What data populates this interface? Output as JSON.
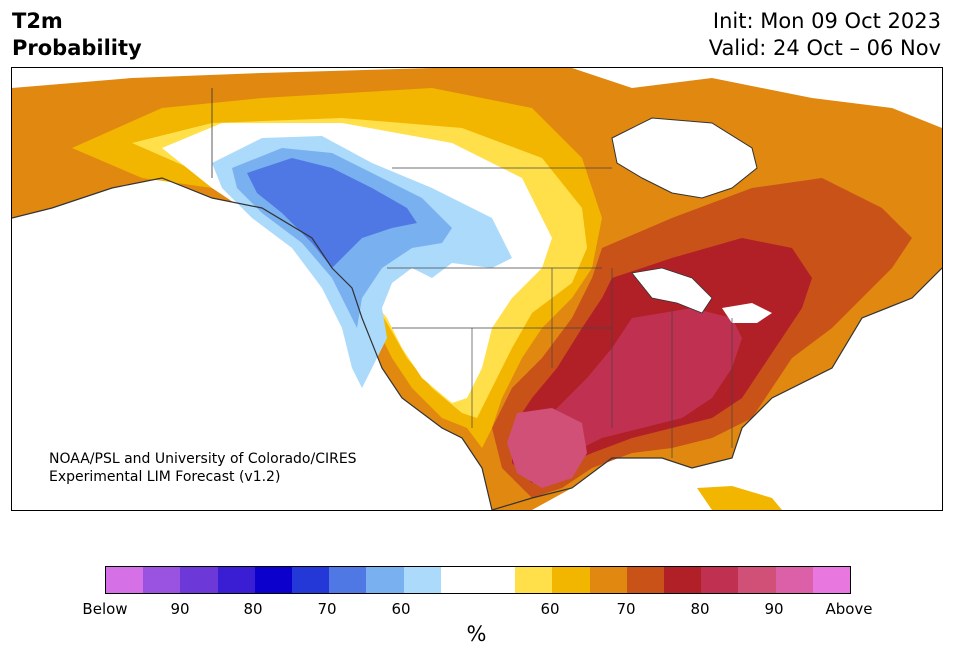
{
  "title": {
    "variable": "T2m",
    "metric": "Probability",
    "init": "Init: Mon 09 Oct 2023",
    "valid": "Valid: 24 Oct – 06 Nov"
  },
  "credit": {
    "line1": "NOAA/PSL and University of Colorado/CIRES",
    "line2": "Experimental LIM Forecast (v1.2)"
  },
  "colorbar": {
    "colors": [
      "#d670e6",
      "#9a52e0",
      "#6d38d8",
      "#3a1ed4",
      "#0b00cc",
      "#2438d8",
      "#5078e4",
      "#78b0f0",
      "#acdafa",
      "#ffffff",
      "#ffffff",
      "#ffe04a",
      "#f2b600",
      "#e08810",
      "#c85218",
      "#b02026",
      "#c03050",
      "#d05078",
      "#dc60a8",
      "#e878e0"
    ],
    "ticks": [
      "Below",
      "90",
      "80",
      "70",
      "60",
      "60",
      "70",
      "80",
      "90",
      "Above"
    ],
    "unit": "%"
  }
}
